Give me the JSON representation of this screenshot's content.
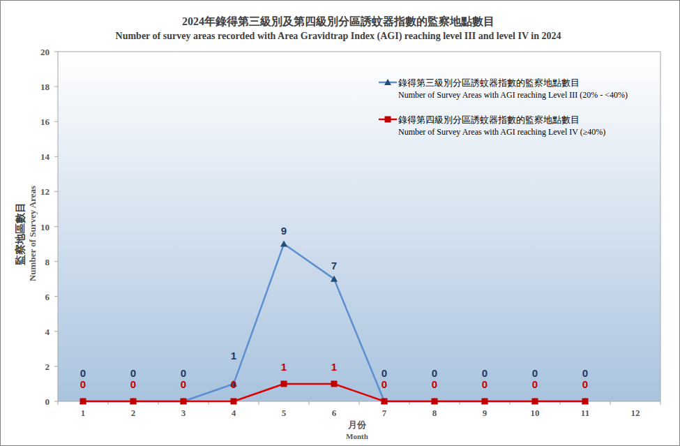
{
  "chart_data": {
    "type": "line",
    "title": "2024年錄得第三級別及第四級別分區誘蚊器指數的監察地點數目",
    "subtitle": "Number of survey areas recorded with  Area Gravidtrap  Index (AGI) reaching level III and level IV in 2024",
    "x_label": "月份\nMonth",
    "y_label": "監察地區數目\nNumber of Survey Areas",
    "categories": [
      "1",
      "2",
      "3",
      "4",
      "5",
      "6",
      "7",
      "8",
      "9",
      "10",
      "11",
      "12"
    ],
    "ylim": [
      0,
      20
    ],
    "yticks": [
      0,
      2,
      4,
      6,
      8,
      10,
      12,
      14,
      16,
      18,
      20
    ],
    "grid": false,
    "legend": "top-right",
    "data_labels": true,
    "series": [
      {
        "name": "錄得第三級別分區誘蚊器指數的監察地點數目\nNumber of Survey Areas with AGI reaching Level III (20% - <40%)",
        "color": "#5b8fd0",
        "marker": "triangle",
        "values": [
          0,
          0,
          0,
          1,
          9,
          7,
          0,
          0,
          0,
          0,
          0,
          null
        ]
      },
      {
        "name": "錄得第四級別分區誘蚊器指數的監察地點數目\nNumber of Survey Areas with AGI reaching Level IV (≥40%)",
        "color": "#e00000",
        "marker": "square",
        "values": [
          0,
          0,
          0,
          0,
          1,
          1,
          0,
          0,
          0,
          0,
          0,
          null
        ]
      }
    ]
  }
}
